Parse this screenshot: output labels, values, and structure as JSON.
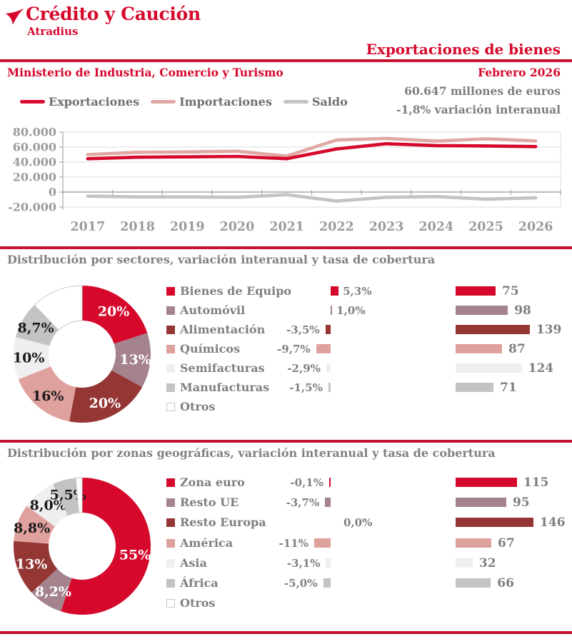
{
  "header": {
    "logo_title": "Crédito y Caución",
    "logo_subtitle": "Atradius",
    "page_title": "Exportaciones de bienes"
  },
  "meta": {
    "source": "Ministerio de Industria, Comercio y Turismo",
    "period": "Febrero 2026",
    "headline_value": "60.647 millones de euros",
    "headline_variation": "-1,8% variación interanual"
  },
  "colors": {
    "brand_red": "#d6082c",
    "rule_red": "#c41130",
    "mauve": "#a4838c",
    "dark_red": "#943634",
    "salmon": "#dfa19d",
    "light_gray": "#efefef",
    "mid_gray": "#c3c3c3",
    "text_gray": "#7f7f7f",
    "axis_gray": "#9b9b9b"
  },
  "chart_data": [
    {
      "id": "trend",
      "type": "line",
      "title": "",
      "xlabel": "",
      "ylabel": "",
      "x": [
        "2017",
        "2018",
        "2019",
        "2020",
        "2021",
        "2022",
        "2023",
        "2024",
        "2025",
        "2026"
      ],
      "series": [
        {
          "name": "Exportaciones",
          "color": "#d6082c",
          "values": [
            44500,
            46500,
            47000,
            47500,
            44500,
            57500,
            64500,
            62000,
            61500,
            60647
          ]
        },
        {
          "name": "Importaciones",
          "color": "#dfa8a4",
          "values": [
            50000,
            53000,
            53500,
            54500,
            48000,
            69500,
            71500,
            68000,
            71000,
            68300
          ]
        },
        {
          "name": "Saldo",
          "color": "#c3c3c3",
          "values": [
            -5500,
            -6500,
            -6500,
            -7000,
            -3500,
            -12000,
            -7000,
            -6000,
            -9500,
            -7650
          ]
        }
      ],
      "ylim": [
        -20000,
        80000
      ],
      "yticks": [
        {
          "v": 80000,
          "label": "80.000"
        },
        {
          "v": 60000,
          "label": "60.000"
        },
        {
          "v": 40000,
          "label": "40.000"
        },
        {
          "v": 20000,
          "label": "20.000"
        },
        {
          "v": 0,
          "label": "0"
        },
        {
          "v": -20000,
          "label": "-20.000"
        }
      ],
      "legend_position": "top-left",
      "grid": "horizontal"
    },
    {
      "id": "sectors",
      "type": "donut+bars",
      "title": "Distribución por sectores,  variación interanual y tasa de cobertura",
      "rows": [
        {
          "label": "Bienes de Equipo",
          "color": "#d6082c",
          "share": 20,
          "share_label": "20%",
          "share_label_color": "#ffffff",
          "variation": 5.3,
          "variation_label": "5,3%",
          "coverage": 75,
          "coverage_label": "75"
        },
        {
          "label": "Automóvil",
          "color": "#a4838c",
          "share": 13,
          "share_label": "13%",
          "share_label_color": "#ffffff",
          "variation": 1.0,
          "variation_label": "1,0%",
          "coverage": 98,
          "coverage_label": "98"
        },
        {
          "label": "Alimentación",
          "color": "#943634",
          "share": 20,
          "share_label": "20%",
          "share_label_color": "#ffffff",
          "variation": -3.5,
          "variation_label": "-3,5%",
          "coverage": 139,
          "coverage_label": "139"
        },
        {
          "label": "Químicos",
          "color": "#dfa19d",
          "share": 16,
          "share_label": "16%",
          "share_label_color": "#1a1a1a",
          "variation": -9.7,
          "variation_label": "-9,7%",
          "coverage": 87,
          "coverage_label": "87"
        },
        {
          "label": "Semifacturas",
          "color": "#efefef",
          "share": 10,
          "share_label": "10%",
          "share_label_color": "#1a1a1a",
          "variation": -2.9,
          "variation_label": "-2,9%",
          "coverage": 124,
          "coverage_label": "124"
        },
        {
          "label": "Manufacturas",
          "color": "#c3c3c3",
          "share": 8.7,
          "share_label": "8,7%",
          "share_label_color": "#1a1a1a",
          "variation": -1.5,
          "variation_label": "-1,5%",
          "coverage": 71,
          "coverage_label": "71"
        },
        {
          "label": "Otros",
          "color": "#ffffff",
          "share": 12.3,
          "share_label": "",
          "share_label_color": "#1a1a1a",
          "variation": null,
          "variation_label": "",
          "coverage": null,
          "coverage_label": ""
        }
      ]
    },
    {
      "id": "zones",
      "type": "donut+bars",
      "title": "Distribución por zonas geográficas, variación interanual y tasa de cobertura",
      "rows": [
        {
          "label": "Zona euro",
          "color": "#d6082c",
          "share": 55,
          "share_label": "55%",
          "share_label_color": "#ffffff",
          "variation": -0.1,
          "variation_label": "-0,1%",
          "coverage": 115,
          "coverage_label": "115"
        },
        {
          "label": "Resto UE",
          "color": "#a4838c",
          "share": 8.2,
          "share_label": "8,2%",
          "share_label_color": "#ffffff",
          "variation": -3.7,
          "variation_label": "-3,7%",
          "coverage": 95,
          "coverage_label": "95"
        },
        {
          "label": "Resto Europa",
          "color": "#943634",
          "share": 13,
          "share_label": "13%",
          "share_label_color": "#ffffff",
          "variation": 0.0,
          "variation_label": "0,0%",
          "coverage": 146,
          "coverage_label": "146"
        },
        {
          "label": "América",
          "color": "#dfa19d",
          "share": 8.8,
          "share_label": "8,8%",
          "share_label_color": "#1a1a1a",
          "variation": -11,
          "variation_label": "-11%",
          "coverage": 67,
          "coverage_label": "67"
        },
        {
          "label": "Asia",
          "color": "#efefef",
          "share": 8.0,
          "share_label": "8,0%",
          "share_label_color": "#1a1a1a",
          "variation": -3.1,
          "variation_label": "-3,1%",
          "coverage": 32,
          "coverage_label": "32"
        },
        {
          "label": "África",
          "color": "#c3c3c3",
          "share": 5.5,
          "share_label": "5,5%",
          "share_label_color": "#1a1a1a",
          "variation": -5.0,
          "variation_label": "-5,0%",
          "coverage": 66,
          "coverage_label": "66"
        },
        {
          "label": "Otros",
          "color": "#ffffff",
          "share": 1.5,
          "share_label": "",
          "share_label_color": "#1a1a1a",
          "variation": null,
          "variation_label": "",
          "coverage": null,
          "coverage_label": ""
        }
      ]
    }
  ]
}
